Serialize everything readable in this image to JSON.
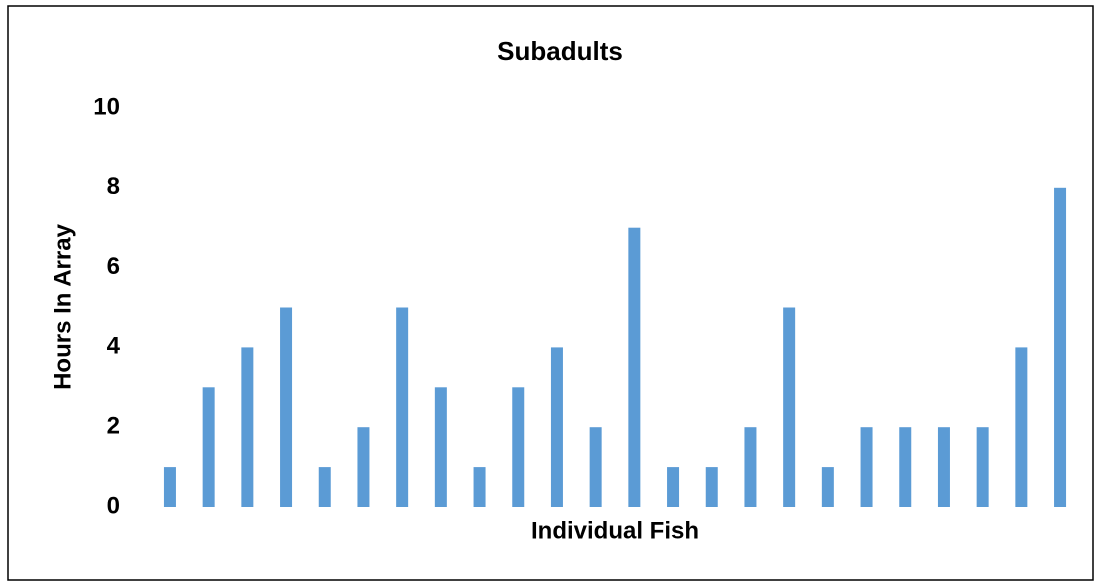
{
  "chart_data": {
    "type": "bar",
    "title": "Subadults",
    "x_label": "Individual Fish",
    "y_label": "Hours In Array",
    "categories": [
      null,
      null,
      null,
      null,
      null,
      null,
      null,
      null,
      null,
      null,
      null,
      null,
      null,
      null,
      null,
      null,
      null,
      null,
      null,
      null,
      null,
      null,
      null,
      null
    ],
    "values": [
      1,
      3,
      4,
      5,
      1,
      2,
      5,
      3,
      1,
      3,
      4,
      2,
      7,
      1,
      1,
      2,
      5,
      1,
      2,
      2,
      2,
      2,
      4,
      8
    ],
    "color": "#5b9bd5",
    "ylim": [
      0,
      10
    ],
    "yticks": [
      0,
      2,
      4,
      6,
      8,
      10
    ],
    "grid": false
  }
}
